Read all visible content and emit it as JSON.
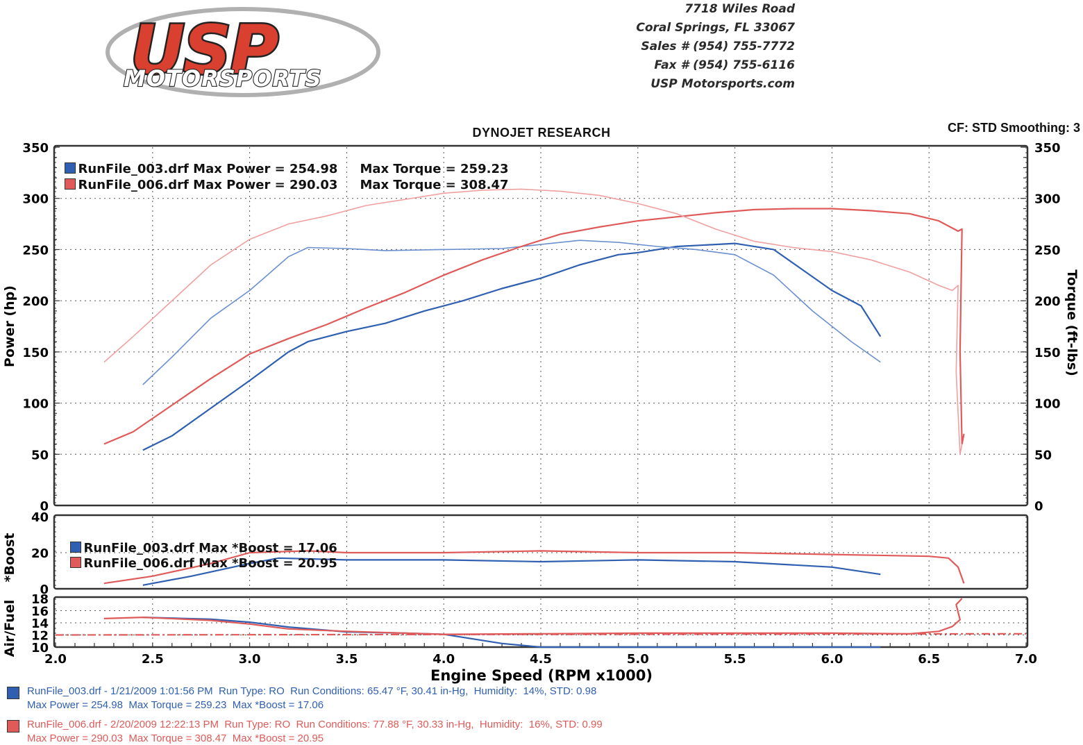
{
  "header": {
    "logo_text": "USP",
    "logo_subtext": "MOTORSPORTS",
    "address": [
      "7718 Wiles Road",
      "Coral Springs, FL 33067",
      "Sales # (954) 755-7772",
      "Fax # (954) 755-6116",
      "USP Motorsports.com"
    ]
  },
  "colors": {
    "run003": "#2f5fb0",
    "run006": "#e05a5a",
    "run003_light": "#6a8fcf",
    "run006_light": "#f0a0a0"
  },
  "runs": [
    {
      "file": "RunFile_003.drf",
      "main_legend_power": "RunFile_003.drf Max Power = 254.98",
      "main_legend_torque": "Max Torque = 259.23",
      "boost_legend": "RunFile_003.drf Max *Boost = 17.06",
      "footer_line1": "RunFile_003.drf - 1/21/2009 1:01:56 PM  Run Type: RO  Run Conditions: 65.47 °F, 30.41 in-Hg,  Humidity:  14%, STD: 0.98",
      "footer_line2": "Max Power = 254.98  Max Torque = 259.23  Max *Boost = 17.06"
    },
    {
      "file": "RunFile_006.drf",
      "main_legend_power": "RunFile_006.drf Max Power = 290.03",
      "main_legend_torque": "Max Torque = 308.47",
      "boost_legend": "RunFile_006.drf Max *Boost = 20.95",
      "footer_line1": "RunFile_006.drf - 2/20/2009 12:22:13 PM  Run Type: RO  Run Conditions: 77.88 °F, 30.33 in-Hg,  Humidity:  16%, STD: 0.99",
      "footer_line2": "Max Power = 290.03  Max Torque = 308.47  Max *Boost = 20.95"
    }
  ],
  "chart_data": [
    {
      "type": "line",
      "title": "DYNOJET RESEARCH",
      "info": "CF: STD  Smoothing: 3",
      "xlabel": "Engine Speed (RPM x1000)",
      "ylabel": "Power (hp)",
      "ylabel_right": "Torque (ft-lbs)",
      "xlim": [
        2.0,
        7.0
      ],
      "ylim": [
        0,
        350
      ],
      "x_ticks": [
        "2.0",
        "2.5",
        "3.0",
        "3.5",
        "4.0",
        "4.5",
        "5.0",
        "5.5",
        "6.0",
        "6.5",
        "7.0"
      ],
      "y_ticks": [
        "0",
        "50",
        "100",
        "150",
        "200",
        "250",
        "300",
        "350"
      ],
      "grid": true,
      "series": [
        {
          "name": "RunFile_003.drf Power",
          "color": "#2f5fb0",
          "x": [
            2.45,
            2.6,
            2.8,
            3.0,
            3.2,
            3.3,
            3.5,
            3.7,
            3.9,
            4.1,
            4.3,
            4.5,
            4.7,
            4.9,
            5.0,
            5.2,
            5.4,
            5.5,
            5.7,
            5.85,
            6.0,
            6.15,
            6.25
          ],
          "y": [
            54,
            68,
            95,
            122,
            150,
            160,
            170,
            178,
            190,
            200,
            212,
            222,
            235,
            245,
            247,
            253,
            255,
            256,
            250,
            230,
            210,
            195,
            165
          ]
        },
        {
          "name": "RunFile_003.drf Torque",
          "color": "#6a8fcf",
          "x": [
            2.45,
            2.6,
            2.8,
            3.0,
            3.2,
            3.3,
            3.5,
            3.7,
            4.0,
            4.3,
            4.5,
            4.7,
            4.9,
            5.1,
            5.3,
            5.5,
            5.7,
            5.9,
            6.0,
            6.1,
            6.25
          ],
          "y": [
            118,
            145,
            183,
            210,
            243,
            252,
            251,
            249,
            250,
            251,
            255,
            259,
            257,
            253,
            250,
            245,
            225,
            190,
            175,
            160,
            140
          ]
        },
        {
          "name": "RunFile_006.drf Power",
          "color": "#e05a5a",
          "x": [
            2.25,
            2.4,
            2.6,
            2.8,
            3.0,
            3.2,
            3.4,
            3.6,
            3.8,
            4.0,
            4.2,
            4.4,
            4.6,
            4.8,
            5.0,
            5.2,
            5.4,
            5.6,
            5.8,
            6.0,
            6.2,
            6.4,
            6.55,
            6.65,
            6.67,
            6.66,
            6.67,
            6.68
          ],
          "y": [
            60,
            72,
            98,
            124,
            148,
            163,
            177,
            193,
            208,
            225,
            240,
            253,
            265,
            272,
            278,
            282,
            286,
            289,
            290,
            290,
            288,
            285,
            278,
            268,
            270,
            150,
            60,
            70
          ]
        },
        {
          "name": "RunFile_006.drf Torque",
          "color": "#f0a0a0",
          "x": [
            2.25,
            2.4,
            2.6,
            2.8,
            3.0,
            3.2,
            3.4,
            3.6,
            3.8,
            4.0,
            4.2,
            4.4,
            4.6,
            4.8,
            5.0,
            5.2,
            5.4,
            5.6,
            5.8,
            6.0,
            6.2,
            6.4,
            6.55,
            6.62,
            6.65,
            6.64,
            6.66,
            6.67
          ],
          "y": [
            140,
            165,
            200,
            235,
            260,
            275,
            283,
            293,
            299,
            305,
            308,
            309,
            307,
            303,
            295,
            285,
            270,
            258,
            252,
            248,
            240,
            228,
            215,
            210,
            215,
            130,
            50,
            60
          ]
        }
      ]
    },
    {
      "type": "line",
      "ylabel": "*Boost",
      "xlim": [
        2.0,
        7.0
      ],
      "ylim": [
        0,
        40
      ],
      "y_ticks": [
        "0",
        "20",
        "40"
      ],
      "series": [
        {
          "name": "RunFile_003.drf *Boost",
          "color": "#2f5fb0",
          "x": [
            2.45,
            2.7,
            3.0,
            3.15,
            3.5,
            4.0,
            4.5,
            5.0,
            5.5,
            6.0,
            6.25
          ],
          "y": [
            2,
            7,
            14,
            17,
            16,
            16,
            15,
            16,
            15,
            12,
            8
          ]
        },
        {
          "name": "RunFile_006.drf *Boost",
          "color": "#e05a5a",
          "x": [
            2.25,
            2.5,
            2.8,
            3.0,
            3.3,
            3.5,
            4.0,
            4.5,
            5.0,
            5.5,
            6.0,
            6.5,
            6.6,
            6.65,
            6.68
          ],
          "y": [
            3,
            7,
            14,
            20,
            21,
            20,
            20,
            21,
            20,
            20,
            19,
            18,
            17,
            12,
            3
          ]
        }
      ]
    },
    {
      "type": "line",
      "ylabel": "Air/Fuel",
      "xlim": [
        2.0,
        7.0
      ],
      "ylim": [
        10,
        18
      ],
      "y_ticks": [
        "10",
        "12",
        "14",
        "16",
        "18"
      ],
      "series": [
        {
          "name": "RunFile_003.drf Air/Fuel",
          "color": "#2f5fb0",
          "x": [
            2.45,
            2.8,
            3.0,
            3.2,
            3.5,
            3.8,
            4.0,
            4.3,
            4.5,
            5.0,
            6.25
          ],
          "y": [
            14.9,
            14.6,
            14.1,
            13.3,
            12.5,
            12.3,
            12.1,
            10.6,
            10.0,
            10.0,
            10.0
          ]
        },
        {
          "name": "RunFile_006.drf Air/Fuel",
          "color": "#e05a5a",
          "x": [
            2.25,
            2.45,
            2.8,
            3.0,
            3.2,
            3.5,
            4.0,
            4.5,
            5.0,
            5.5,
            6.0,
            6.4,
            6.55,
            6.62,
            6.66,
            6.64,
            6.67
          ],
          "y": [
            14.7,
            14.9,
            14.4,
            13.8,
            13.0,
            12.6,
            12.1,
            12.2,
            12.3,
            12.3,
            12.3,
            12.2,
            12.6,
            13.4,
            14.5,
            17.0,
            18.0
          ]
        },
        {
          "name": "Air/Fuel reference",
          "color": "#e05a5a",
          "x": [
            2.0,
            7.0
          ],
          "y": [
            12.0,
            12.2
          ]
        }
      ]
    }
  ]
}
